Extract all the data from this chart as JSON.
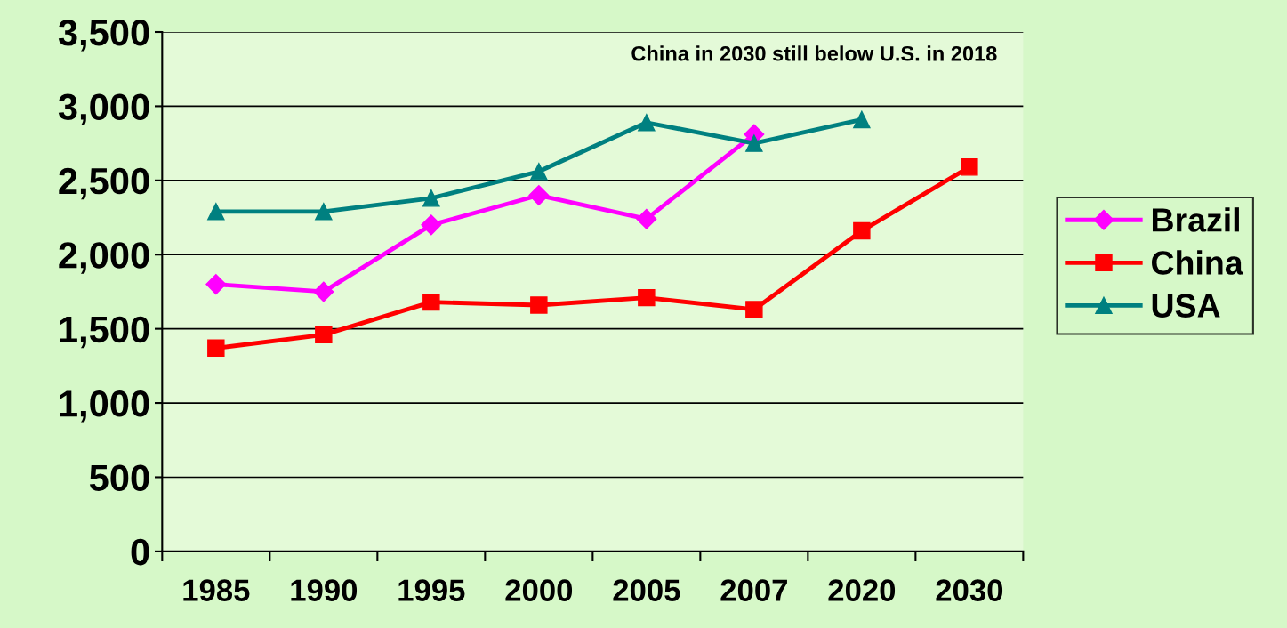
{
  "chart_data": {
    "type": "line",
    "categories": [
      "1985",
      "1990",
      "1995",
      "2000",
      "2005",
      "2007",
      "2020",
      "2030"
    ],
    "series": [
      {
        "name": "Brazil",
        "color": "#ff00ff",
        "marker": "diamond",
        "values": [
          1800,
          1750,
          2200,
          2400,
          2240,
          2810,
          null,
          null
        ]
      },
      {
        "name": "China",
        "color": "#ff0000",
        "marker": "square",
        "values": [
          1370,
          1460,
          1680,
          1660,
          1710,
          1630,
          2160,
          2590
        ]
      },
      {
        "name": "USA",
        "color": "#008080",
        "marker": "triangle",
        "values": [
          2290,
          2290,
          2380,
          2560,
          2890,
          2750,
          2910,
          null
        ]
      }
    ],
    "ylim": [
      0,
      3500
    ],
    "yticks": [
      {
        "value": 0,
        "label": "0"
      },
      {
        "value": 500,
        "label": "500"
      },
      {
        "value": 1000,
        "label": "1,000"
      },
      {
        "value": 1500,
        "label": "1,500"
      },
      {
        "value": 2000,
        "label": "2,000"
      },
      {
        "value": 2500,
        "label": "2,500"
      },
      {
        "value": 3000,
        "label": "3,000"
      },
      {
        "value": 3500,
        "label": "3,500"
      }
    ],
    "grid": "y",
    "legend": "right",
    "line_style": "solid",
    "annotations": [
      "China in 2030 still below U.S. in 2018"
    ]
  }
}
